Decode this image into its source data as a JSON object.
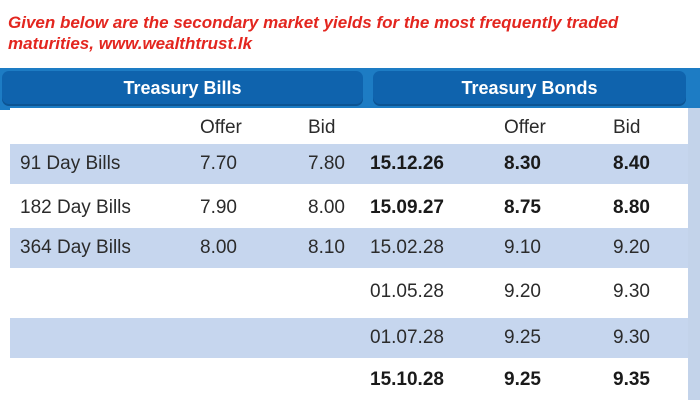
{
  "caption": "Given below are the secondary market yields for the most frequently traded maturities, www.wealthtrust.lk",
  "headers": {
    "bills_title": "Treasury Bills",
    "bonds_title": "Treasury Bonds",
    "bills_offer": "Offer",
    "bills_bid": "Bid",
    "bonds_offer": "Offer",
    "bonds_bid": "Bid"
  },
  "rows": [
    {
      "bill": "91 Day Bills",
      "bill_offer": "7.70",
      "bill_bid": "7.80",
      "maturity": "15.12.26",
      "bond_offer": "8.30",
      "bond_bid": "8.40",
      "bond_bold": true
    },
    {
      "bill": "182 Day Bills",
      "bill_offer": "7.90",
      "bill_bid": "8.00",
      "maturity": "15.09.27",
      "bond_offer": "8.75",
      "bond_bid": "8.80",
      "bond_bold": true
    },
    {
      "bill": "364 Day Bills",
      "bill_offer": "8.00",
      "bill_bid": "8.10",
      "maturity": "15.02.28",
      "bond_offer": "9.10",
      "bond_bid": "9.20",
      "bond_bold": false
    },
    {
      "bill": "",
      "bill_offer": "",
      "bill_bid": "",
      "maturity": "01.05.28",
      "bond_offer": "9.20",
      "bond_bid": "9.30",
      "bond_bold": false
    },
    {
      "bill": "",
      "bill_offer": "",
      "bill_bid": "",
      "maturity": "01.07.28",
      "bond_offer": "9.25",
      "bond_bid": "9.30",
      "bond_bold": false
    },
    {
      "bill": "",
      "bill_offer": "",
      "bill_bid": "",
      "maturity": "15.10.28",
      "bond_offer": "9.25",
      "bond_bid": "9.35",
      "bond_bold": true
    }
  ],
  "colors": {
    "caption": "#e3261f",
    "header_band": "#1d7cc4",
    "header_pill": "#0f63ad",
    "row_shade": "#c6d6ee"
  }
}
